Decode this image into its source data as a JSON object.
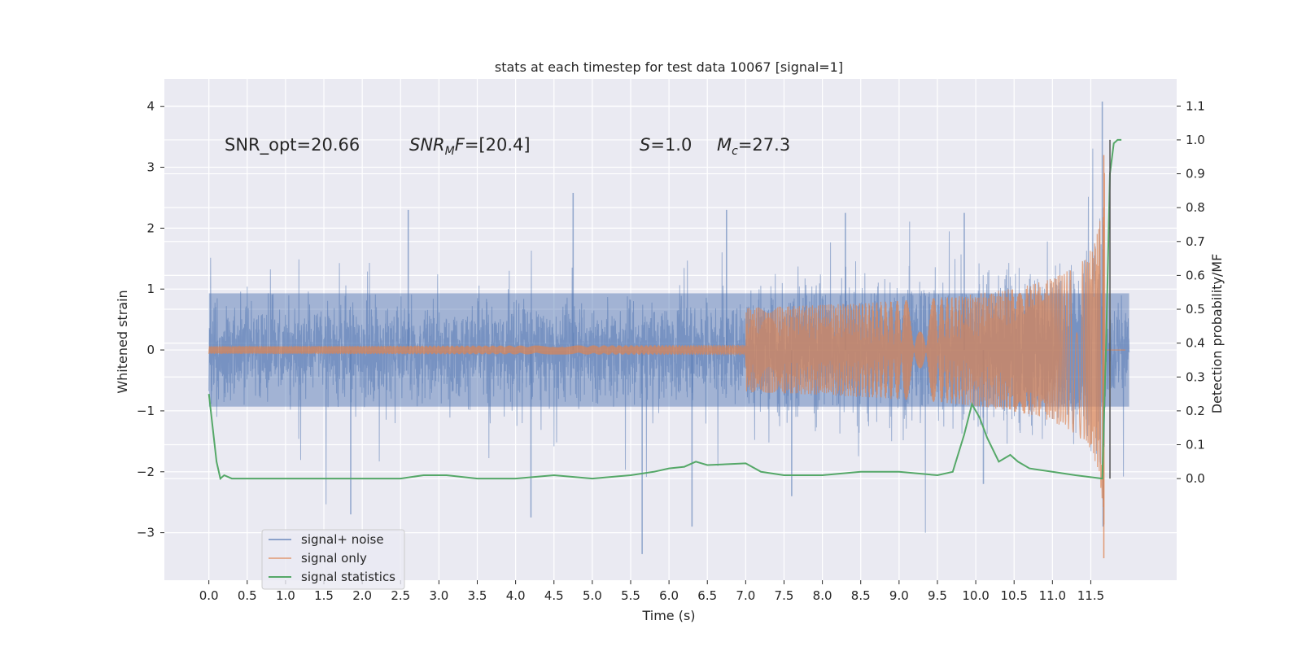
{
  "chart_data": {
    "type": "line",
    "title": "stats at each timestep for test data 10067 [signal=1]",
    "xlabel": "Time (s)",
    "ylabel": "Whitened strain",
    "y2label": "Detection probability/MF",
    "xlim": [
      -0.58,
      12.62
    ],
    "ylim": [
      -3.78,
      4.45
    ],
    "y2lim": [
      -0.3,
      1.18
    ],
    "x_ticks": [
      0.0,
      0.5,
      1.0,
      1.5,
      2.0,
      2.5,
      3.0,
      3.5,
      4.0,
      4.5,
      5.0,
      5.5,
      6.0,
      6.5,
      7.0,
      7.5,
      8.0,
      8.5,
      9.0,
      9.5,
      10.0,
      10.5,
      11.0,
      11.5
    ],
    "x_tick_labels": [
      "0.0",
      "0.5",
      "1.0",
      "1.5",
      "2.0",
      "2.5",
      "3.0",
      "3.5",
      "4.0",
      "4.5",
      "5.0",
      "5.5",
      "6.0",
      "6.5",
      "7.0",
      "7.5",
      "8.0",
      "8.5",
      "9.0",
      "9.5",
      "10.0",
      "10.5",
      "11.0",
      "11.5"
    ],
    "y_ticks": [
      4,
      3,
      2,
      1,
      0,
      -1,
      -2,
      -3
    ],
    "y_tick_labels": [
      "4",
      "3",
      "2",
      "1",
      "0",
      "−1",
      "−2",
      "−3"
    ],
    "y2_ticks": [
      1.1,
      1.0,
      0.9,
      0.8,
      0.7,
      0.6,
      0.5,
      0.4,
      0.3,
      0.2,
      0.1,
      0.0
    ],
    "y2_tick_labels": [
      "1.1",
      "1.0",
      "0.9",
      "0.8",
      "0.7",
      "0.6",
      "0.5",
      "0.4",
      "0.3",
      "0.2",
      "0.1",
      "0.0"
    ],
    "grid": true,
    "legend_position": "lower-left",
    "annotations": {
      "snr_opt": "SNR_opt=20.66",
      "snr_mf_label": "SNR",
      "snr_mf_sub": "M",
      "snr_mf_tail": "F",
      "snr_mf_value": "=[20.4]",
      "s_label": "S",
      "s_value": "=1.0",
      "mc_label": "M",
      "mc_sub": "c",
      "mc_value": "=27.3"
    },
    "vertical_marker_x": 11.75,
    "series": [
      {
        "name": "signal+ noise",
        "color": "#4c72b0",
        "opacity": 0.5,
        "t_range": [
          0.0,
          12.0
        ],
        "band_y": [
          -0.93,
          0.93
        ],
        "notable_peaks": [
          [
            1.85,
            -2.7
          ],
          [
            2.6,
            2.3
          ],
          [
            4.2,
            -2.75
          ],
          [
            4.75,
            2.58
          ],
          [
            5.65,
            -3.35
          ],
          [
            6.3,
            -2.9
          ],
          [
            6.75,
            2.3
          ],
          [
            7.6,
            -2.4
          ],
          [
            8.3,
            2.25
          ],
          [
            9.85,
            2.25
          ],
          [
            10.1,
            -2.2
          ],
          [
            11.65,
            4.08
          ],
          [
            11.66,
            -2.9
          ]
        ]
      },
      {
        "name": "signal only",
        "color": "#dd8452",
        "chirp_start": 7.0,
        "merger_time": 11.68,
        "peak_amplitude": 3.2,
        "min_value": -3.42
      },
      {
        "name": "signal statistics",
        "color": "#55a868",
        "axis": "right",
        "x": [
          0.0,
          0.05,
          0.1,
          0.15,
          0.2,
          0.3,
          0.5,
          1.0,
          1.5,
          2.0,
          2.5,
          2.8,
          3.1,
          3.5,
          4.0,
          4.5,
          5.0,
          5.5,
          5.8,
          6.0,
          6.2,
          6.35,
          6.5,
          7.0,
          7.2,
          7.5,
          8.0,
          8.5,
          9.0,
          9.5,
          9.7,
          9.85,
          9.95,
          10.05,
          10.15,
          10.3,
          10.45,
          10.55,
          10.7,
          11.0,
          11.3,
          11.65,
          11.7,
          11.75,
          11.8,
          11.85,
          11.9
        ],
        "values": [
          0.25,
          0.15,
          0.05,
          0.0,
          0.01,
          0.0,
          0.0,
          0.0,
          0.0,
          0.0,
          0.0,
          0.01,
          0.01,
          0.0,
          0.0,
          0.01,
          0.0,
          0.01,
          0.02,
          0.03,
          0.035,
          0.05,
          0.04,
          0.045,
          0.02,
          0.01,
          0.01,
          0.02,
          0.02,
          0.01,
          0.02,
          0.13,
          0.22,
          0.18,
          0.12,
          0.05,
          0.07,
          0.05,
          0.03,
          0.02,
          0.01,
          0.0,
          0.4,
          0.9,
          0.99,
          1.0,
          1.0
        ]
      }
    ]
  }
}
